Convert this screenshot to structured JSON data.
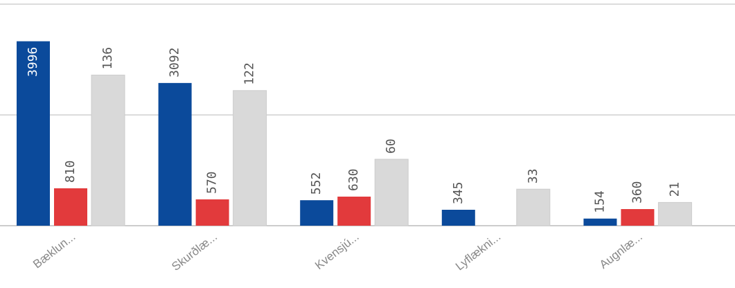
{
  "chart_data": {
    "type": "bar",
    "categories": [
      "Bæklun...",
      "Skurðlæ...",
      "Kvensjú...",
      "Lyflækni...",
      "Augnlæ..."
    ],
    "series": [
      {
        "color": "#0b4a9b",
        "values": [
          3996,
          3092,
          552,
          345,
          154
        ]
      },
      {
        "color": "#e23a3c",
        "values": [
          810,
          570,
          630,
          null,
          360
        ]
      },
      {
        "color": "#d9d9d9",
        "values": [
          136,
          122,
          60,
          33,
          21
        ],
        "axis": "y2"
      }
    ],
    "ylim": [
      0,
      4800
    ],
    "yticks": [
      0,
      2400,
      4800
    ],
    "y2lim": [
      0,
      200
    ],
    "y2ticks": [
      0,
      100,
      200
    ],
    "grid": true
  }
}
